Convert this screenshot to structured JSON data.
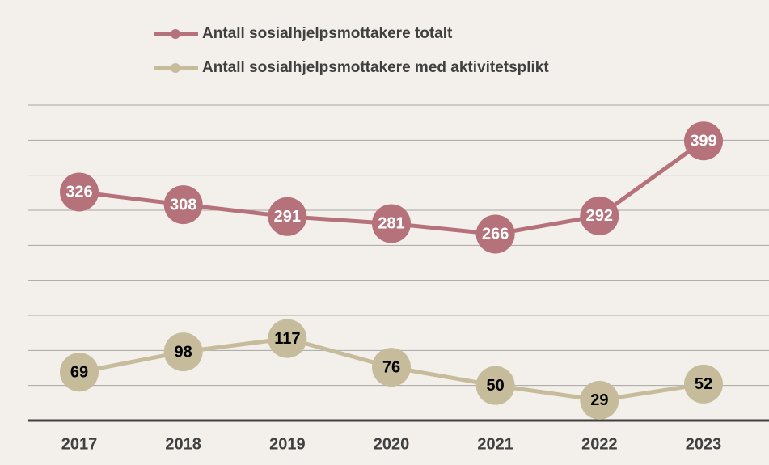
{
  "chart_data": {
    "type": "line",
    "categories": [
      "2017",
      "2018",
      "2019",
      "2020",
      "2021",
      "2022",
      "2023"
    ],
    "series": [
      {
        "name": "Antall sosialhjelpsmottakere totalt",
        "color": "#b5727a",
        "label_color": "#ffffff",
        "values": [
          326,
          308,
          291,
          281,
          266,
          292,
          399
        ]
      },
      {
        "name": "Antall sosialhjelpsmottakere med aktivitetsplikt",
        "color": "#c6bc9b",
        "label_color": "#000000",
        "values": [
          69,
          98,
          117,
          76,
          50,
          29,
          52
        ]
      }
    ],
    "ylim": [
      0,
      450
    ],
    "yticks": [
      0,
      50,
      100,
      150,
      200,
      250,
      300,
      350,
      400,
      450
    ],
    "grid": true,
    "legend": "top",
    "data_labels": true
  }
}
